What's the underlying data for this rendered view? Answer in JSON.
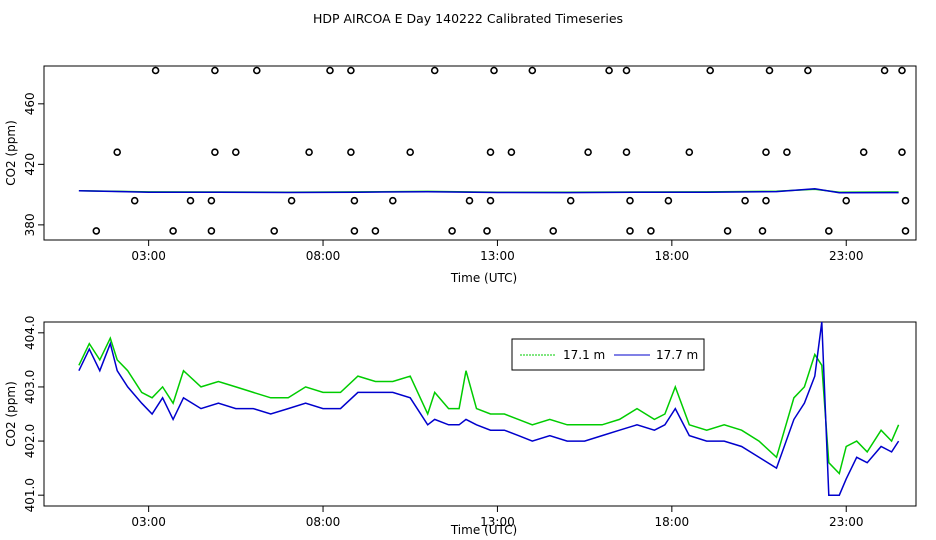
{
  "title": "HDP AIRCOA E  Day 140222  Calibrated Timeseries",
  "colors": {
    "series_17_1": "#00cc00",
    "series_17_7": "#0000cc",
    "points": "#000000"
  },
  "chart_data": [
    {
      "type": "scatter+line",
      "xlabel": "Time (UTC)",
      "ylabel": "CO2 (ppm)",
      "xlim": [
        0.0,
        25.0
      ],
      "ylim": [
        370,
        485
      ],
      "x_ticks": [
        {
          "v": 3,
          "label": "03:00"
        },
        {
          "v": 8,
          "label": "08:00"
        },
        {
          "v": 13,
          "label": "13:00"
        },
        {
          "v": 18,
          "label": "18:00"
        },
        {
          "v": 23,
          "label": "23:00"
        }
      ],
      "y_ticks": [
        {
          "v": 380,
          "label": "380"
        },
        {
          "v": 420,
          "label": "420"
        },
        {
          "v": 460,
          "label": "460"
        }
      ],
      "calibration_points": [
        {
          "x": 1.5,
          "y": 376
        },
        {
          "x": 2.6,
          "y": 396
        },
        {
          "x": 2.1,
          "y": 428
        },
        {
          "x": 3.2,
          "y": 482
        },
        {
          "x": 3.7,
          "y": 376
        },
        {
          "x": 4.2,
          "y": 396
        },
        {
          "x": 4.8,
          "y": 376
        },
        {
          "x": 4.8,
          "y": 396
        },
        {
          "x": 4.9,
          "y": 428
        },
        {
          "x": 4.9,
          "y": 482
        },
        {
          "x": 5.5,
          "y": 428
        },
        {
          "x": 6.1,
          "y": 482
        },
        {
          "x": 6.6,
          "y": 376
        },
        {
          "x": 7.1,
          "y": 396
        },
        {
          "x": 7.6,
          "y": 428
        },
        {
          "x": 8.2,
          "y": 482
        },
        {
          "x": 8.8,
          "y": 482
        },
        {
          "x": 8.8,
          "y": 428
        },
        {
          "x": 8.9,
          "y": 396
        },
        {
          "x": 8.9,
          "y": 376
        },
        {
          "x": 9.5,
          "y": 376
        },
        {
          "x": 10.0,
          "y": 396
        },
        {
          "x": 10.5,
          "y": 428
        },
        {
          "x": 11.2,
          "y": 482
        },
        {
          "x": 11.7,
          "y": 376
        },
        {
          "x": 12.2,
          "y": 396
        },
        {
          "x": 12.7,
          "y": 376
        },
        {
          "x": 12.8,
          "y": 396
        },
        {
          "x": 12.8,
          "y": 428
        },
        {
          "x": 12.9,
          "y": 482
        },
        {
          "x": 13.4,
          "y": 428
        },
        {
          "x": 14.0,
          "y": 482
        },
        {
          "x": 14.6,
          "y": 376
        },
        {
          "x": 15.1,
          "y": 396
        },
        {
          "x": 15.6,
          "y": 428
        },
        {
          "x": 16.2,
          "y": 482
        },
        {
          "x": 16.7,
          "y": 482
        },
        {
          "x": 16.7,
          "y": 428
        },
        {
          "x": 16.8,
          "y": 396
        },
        {
          "x": 16.8,
          "y": 376
        },
        {
          "x": 17.4,
          "y": 376
        },
        {
          "x": 17.9,
          "y": 396
        },
        {
          "x": 18.5,
          "y": 428
        },
        {
          "x": 19.1,
          "y": 482
        },
        {
          "x": 19.6,
          "y": 376
        },
        {
          "x": 20.1,
          "y": 396
        },
        {
          "x": 20.6,
          "y": 376
        },
        {
          "x": 20.7,
          "y": 396
        },
        {
          "x": 20.7,
          "y": 428
        },
        {
          "x": 20.8,
          "y": 482
        },
        {
          "x": 21.3,
          "y": 428
        },
        {
          "x": 21.9,
          "y": 482
        },
        {
          "x": 22.5,
          "y": 376
        },
        {
          "x": 23.0,
          "y": 396
        },
        {
          "x": 23.5,
          "y": 428
        },
        {
          "x": 24.1,
          "y": 482
        },
        {
          "x": 24.6,
          "y": 482
        },
        {
          "x": 24.6,
          "y": 428
        },
        {
          "x": 24.7,
          "y": 396
        },
        {
          "x": 24.7,
          "y": 376
        }
      ],
      "series": [
        {
          "x": [
            1.0,
            3.0,
            5.0,
            7.0,
            9.0,
            11.0,
            13.0,
            15.0,
            17.0,
            19.0,
            21.0,
            22.1,
            22.8,
            24.5
          ],
          "values": [
            402.6,
            401.8,
            401.7,
            401.6,
            401.8,
            402.1,
            401.6,
            401.5,
            401.7,
            401.8,
            402.2,
            403.5,
            401.5,
            401.7
          ]
        },
        {
          "x": [
            1.0,
            3.0,
            5.0,
            7.0,
            9.0,
            11.0,
            13.0,
            15.0,
            17.0,
            19.0,
            21.0,
            22.1,
            22.8,
            24.5
          ],
          "values": [
            402.5,
            401.6,
            401.5,
            401.4,
            401.6,
            401.9,
            401.4,
            401.3,
            401.5,
            401.6,
            402.0,
            403.9,
            401.2,
            401.3
          ]
        }
      ]
    },
    {
      "type": "line",
      "xlabel": "Time (UTC)",
      "ylabel": "CO2 (ppm)",
      "xlim": [
        0.0,
        25.0
      ],
      "ylim": [
        400.8,
        404.2
      ],
      "x_ticks": [
        {
          "v": 3,
          "label": "03:00"
        },
        {
          "v": 8,
          "label": "08:00"
        },
        {
          "v": 13,
          "label": "13:00"
        },
        {
          "v": 18,
          "label": "18:00"
        },
        {
          "v": 23,
          "label": "23:00"
        }
      ],
      "y_ticks": [
        {
          "v": 401.0,
          "label": "401.0"
        },
        {
          "v": 402.0,
          "label": "402.0"
        },
        {
          "v": 403.0,
          "label": "403.0"
        },
        {
          "v": 404.0,
          "label": "404.0"
        }
      ],
      "legend": {
        "placement": "top-center",
        "entries": [
          "17.1 m",
          "17.7 m"
        ]
      },
      "series": [
        {
          "name": "17.1 m",
          "x": [
            1.0,
            1.3,
            1.6,
            1.9,
            2.1,
            2.4,
            2.8,
            3.1,
            3.4,
            3.7,
            4.0,
            4.5,
            5.0,
            5.5,
            6.0,
            6.5,
            7.0,
            7.5,
            8.0,
            8.5,
            9.0,
            9.5,
            10.0,
            10.5,
            11.0,
            11.2,
            11.6,
            11.9,
            12.1,
            12.4,
            12.8,
            13.2,
            13.6,
            14.0,
            14.5,
            15.0,
            15.5,
            16.0,
            16.5,
            17.0,
            17.5,
            17.8,
            18.1,
            18.5,
            19.0,
            19.5,
            20.0,
            20.5,
            21.0,
            21.5,
            21.8,
            22.1,
            22.3,
            22.5,
            22.8,
            23.0,
            23.3,
            23.6,
            24.0,
            24.3,
            24.5
          ],
          "values": [
            403.4,
            403.8,
            403.5,
            403.9,
            403.5,
            403.3,
            402.9,
            402.8,
            403.0,
            402.7,
            403.3,
            403.0,
            403.1,
            403.0,
            402.9,
            402.8,
            402.8,
            403.0,
            402.9,
            402.9,
            403.2,
            403.1,
            403.1,
            403.2,
            402.5,
            402.9,
            402.6,
            402.6,
            403.3,
            402.6,
            402.5,
            402.5,
            402.4,
            402.3,
            402.4,
            402.3,
            402.3,
            402.3,
            402.4,
            402.6,
            402.4,
            402.5,
            403.0,
            402.3,
            402.2,
            402.3,
            402.2,
            402.0,
            401.7,
            402.8,
            403.0,
            403.6,
            403.4,
            401.6,
            401.4,
            401.9,
            402.0,
            401.8,
            402.2,
            402.0,
            402.3
          ]
        },
        {
          "name": "17.7 m",
          "x": [
            1.0,
            1.3,
            1.6,
            1.9,
            2.1,
            2.4,
            2.8,
            3.1,
            3.4,
            3.7,
            4.0,
            4.5,
            5.0,
            5.5,
            6.0,
            6.5,
            7.0,
            7.5,
            8.0,
            8.5,
            9.0,
            9.5,
            10.0,
            10.5,
            11.0,
            11.2,
            11.6,
            11.9,
            12.1,
            12.4,
            12.8,
            13.2,
            13.6,
            14.0,
            14.5,
            15.0,
            15.5,
            16.0,
            16.5,
            17.0,
            17.5,
            17.8,
            18.1,
            18.5,
            19.0,
            19.5,
            20.0,
            20.5,
            21.0,
            21.5,
            21.8,
            22.1,
            22.3,
            22.5,
            22.8,
            23.0,
            23.3,
            23.6,
            24.0,
            24.3,
            24.5
          ],
          "values": [
            403.3,
            403.7,
            403.3,
            403.8,
            403.3,
            403.0,
            402.7,
            402.5,
            402.8,
            402.4,
            402.8,
            402.6,
            402.7,
            402.6,
            402.6,
            402.5,
            402.6,
            402.7,
            402.6,
            402.6,
            402.9,
            402.9,
            402.9,
            402.8,
            402.3,
            402.4,
            402.3,
            402.3,
            402.4,
            402.3,
            402.2,
            402.2,
            402.1,
            402.0,
            402.1,
            402.0,
            402.0,
            402.1,
            402.2,
            402.3,
            402.2,
            402.3,
            402.6,
            402.1,
            402.0,
            402.0,
            401.9,
            401.7,
            401.5,
            402.4,
            402.7,
            403.2,
            404.2,
            401.0,
            401.0,
            401.3,
            401.7,
            401.6,
            401.9,
            401.8,
            402.0
          ]
        }
      ]
    }
  ]
}
